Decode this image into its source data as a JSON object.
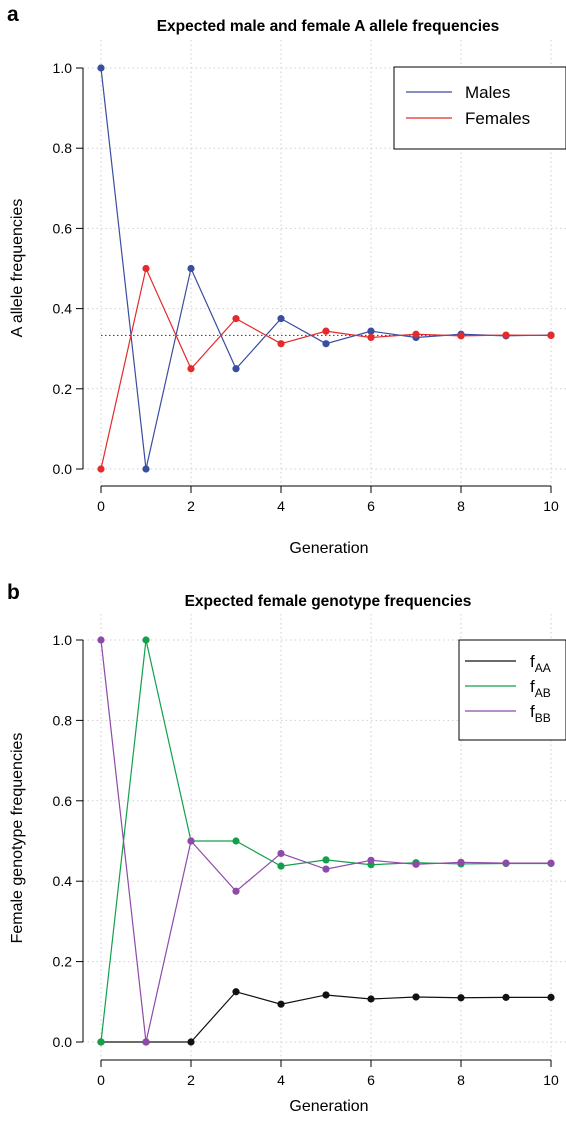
{
  "chart_data": [
    {
      "panel_letter": "a",
      "type": "line",
      "title": "Expected male and female A allele frequencies",
      "xlabel": "Generation",
      "ylabel": "A allele frequencies",
      "xlim": [
        0,
        10
      ],
      "ylim": [
        0,
        1
      ],
      "x_ticks": [
        "0",
        "2",
        "4",
        "6",
        "8",
        "10"
      ],
      "y_ticks": [
        "0.0",
        "0.2",
        "0.4",
        "0.6",
        "0.8",
        "1.0"
      ],
      "grid": "dotted",
      "legend_position": "top-right",
      "x": [
        0,
        1,
        2,
        3,
        4,
        5,
        6,
        7,
        8,
        9,
        10
      ],
      "reference_line": {
        "y": 0.3333,
        "style": "dotted"
      },
      "series": [
        {
          "name": "Males",
          "color": "#3a4ea0",
          "values": [
            1.0,
            0.0,
            0.5,
            0.25,
            0.375,
            0.3125,
            0.34375,
            0.328,
            0.336,
            0.332,
            0.334
          ]
        },
        {
          "name": "Females",
          "color": "#e32b2b",
          "values": [
            0.0,
            0.5,
            0.25,
            0.375,
            0.3125,
            0.34375,
            0.328,
            0.336,
            0.332,
            0.334,
            0.333
          ]
        }
      ]
    },
    {
      "panel_letter": "b",
      "type": "line",
      "title": "Expected female genotype frequencies",
      "xlabel": "Generation",
      "ylabel": "Female genotype frequencies",
      "xlim": [
        0,
        10
      ],
      "ylim": [
        0,
        1
      ],
      "x_ticks": [
        "0",
        "2",
        "4",
        "6",
        "8",
        "10"
      ],
      "y_ticks": [
        "0.0",
        "0.2",
        "0.4",
        "0.6",
        "0.8",
        "1.0"
      ],
      "grid": "dotted",
      "legend_position": "top-right",
      "x": [
        0,
        1,
        2,
        3,
        4,
        5,
        6,
        7,
        8,
        9,
        10
      ],
      "series": [
        {
          "name_main": "f",
          "name_sub": "AA",
          "color": "#111111",
          "values": [
            0.0,
            0.0,
            0.0,
            0.125,
            0.094,
            0.117,
            0.107,
            0.112,
            0.11,
            0.111,
            0.111
          ]
        },
        {
          "name_main": "f",
          "name_sub": "AB",
          "color": "#12a04a",
          "values": [
            0.0,
            1.0,
            0.5,
            0.5,
            0.4375,
            0.453,
            0.441,
            0.446,
            0.443,
            0.444,
            0.444
          ]
        },
        {
          "name_main": "f",
          "name_sub": "BB",
          "color": "#8e4aa8",
          "values": [
            1.0,
            0.0,
            0.5,
            0.375,
            0.469,
            0.43,
            0.452,
            0.442,
            0.447,
            0.445,
            0.445
          ]
        }
      ]
    }
  ]
}
